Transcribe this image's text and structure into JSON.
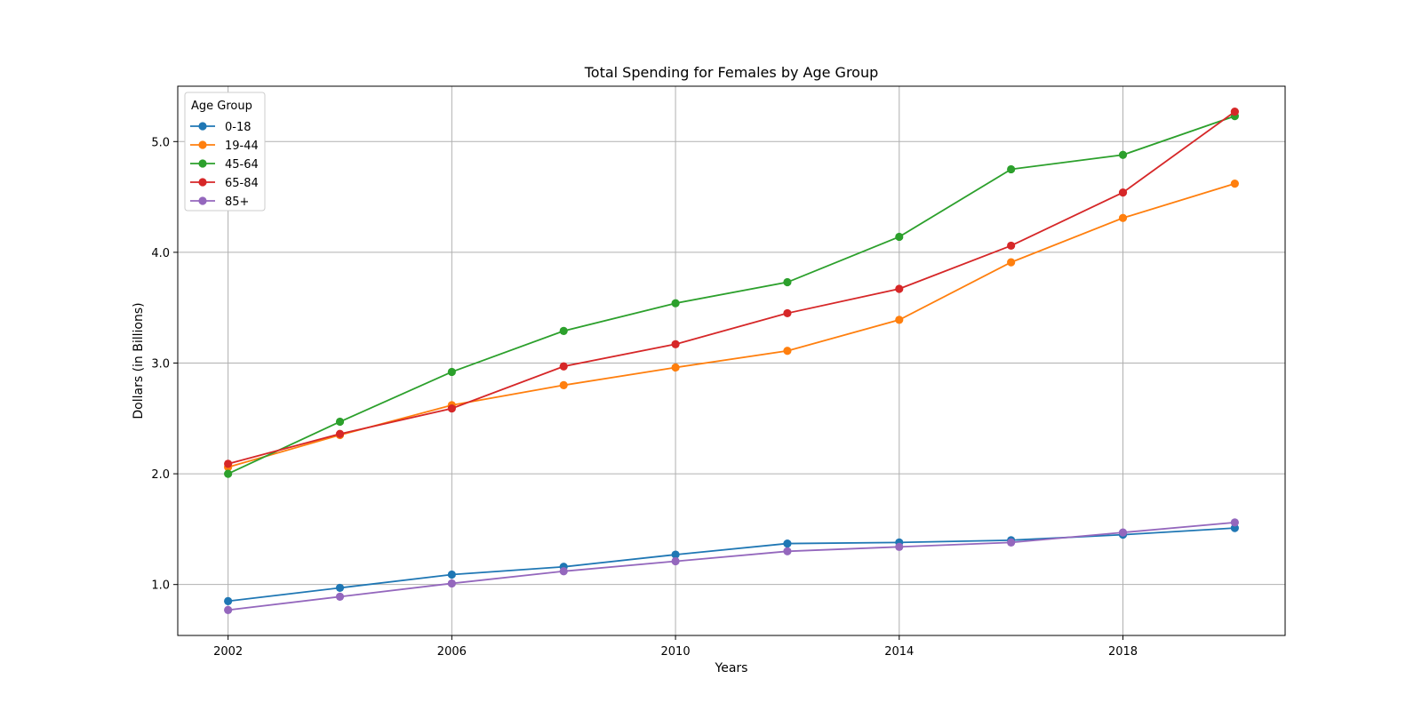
{
  "chart_data": {
    "type": "line",
    "title": "Total Spending for Females by Age Group",
    "xlabel": "Years",
    "ylabel": "Dollars (in Billions)",
    "xlim": [
      2001.1,
      2020.9
    ],
    "ylim": [
      0.54,
      5.5
    ],
    "x_ticks": [
      2002,
      2006,
      2010,
      2014,
      2018
    ],
    "y_ticks": [
      1.0,
      2.0,
      3.0,
      4.0,
      5.0
    ],
    "y_tick_labels": [
      "1.0",
      "2.0",
      "3.0",
      "4.0",
      "5.0"
    ],
    "grid": true,
    "legend": {
      "title": "Age Group",
      "placement": "upper-left"
    },
    "x": [
      2002,
      2004,
      2006,
      2008,
      2010,
      2012,
      2014,
      2016,
      2018,
      2020
    ],
    "series": [
      {
        "name": "0-18",
        "color": "#1f77b4",
        "values": [
          0.85,
          0.97,
          1.09,
          1.16,
          1.27,
          1.37,
          1.38,
          1.4,
          1.45,
          1.51
        ]
      },
      {
        "name": "19-44",
        "color": "#ff7f0e",
        "values": [
          2.06,
          2.35,
          2.62,
          2.8,
          2.96,
          3.11,
          3.39,
          3.91,
          4.31,
          4.62
        ]
      },
      {
        "name": "45-64",
        "color": "#2ca02c",
        "values": [
          2.0,
          2.47,
          2.92,
          3.29,
          3.54,
          3.73,
          4.14,
          4.75,
          4.88,
          5.23
        ]
      },
      {
        "name": "65-84",
        "color": "#d62728",
        "values": [
          2.09,
          2.36,
          2.59,
          2.97,
          3.17,
          3.45,
          3.67,
          4.06,
          4.54,
          5.27
        ]
      },
      {
        "name": "85+",
        "color": "#9467bd",
        "values": [
          0.77,
          0.89,
          1.01,
          1.12,
          1.21,
          1.3,
          1.34,
          1.38,
          1.47,
          1.56
        ]
      }
    ]
  }
}
